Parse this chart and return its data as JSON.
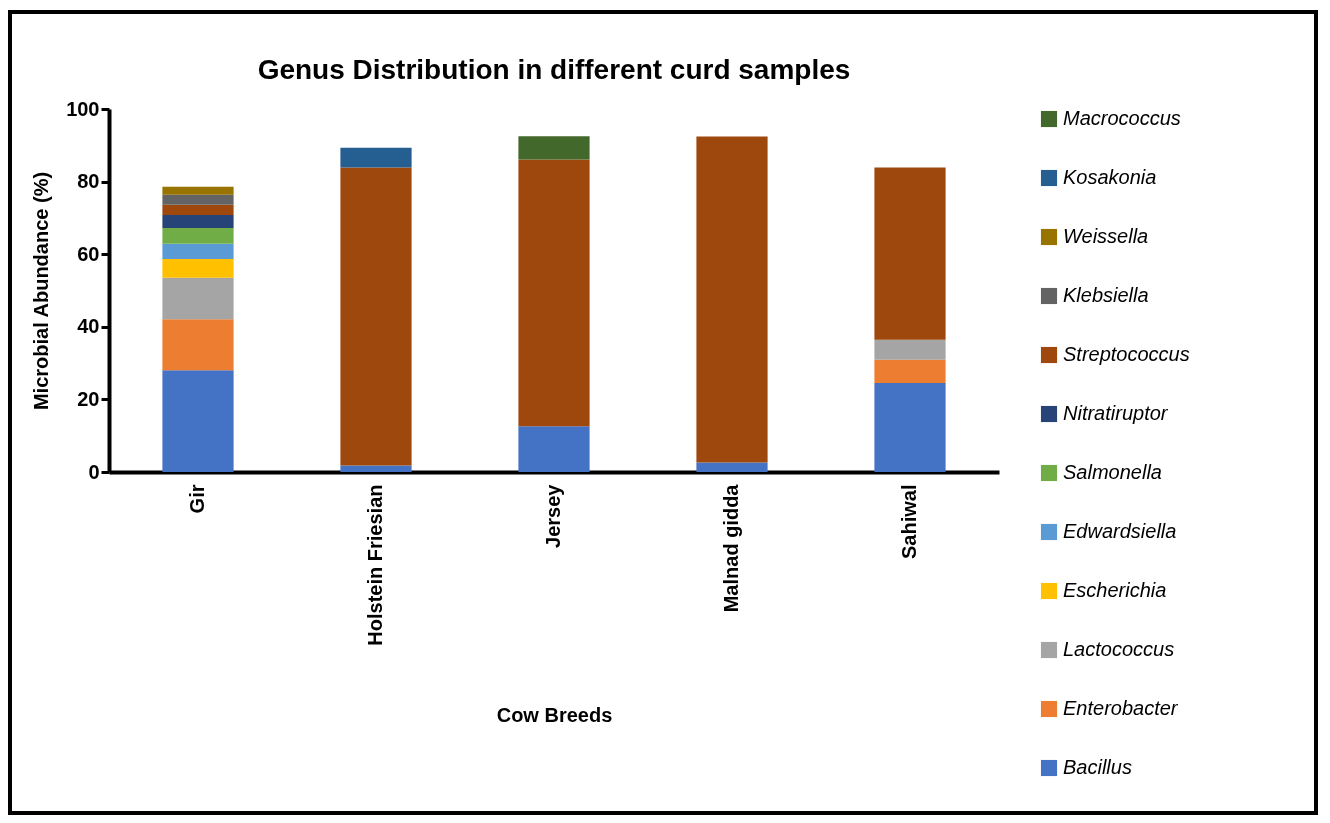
{
  "chart_data": {
    "type": "bar",
    "title": "Genus Distribution in different curd samples",
    "xlabel": "Cow Breeds",
    "ylabel": "Microbial Abundance (%)",
    "categories": [
      "Gir",
      "Holstein Friesian",
      "Jersey",
      "Malnad gidda",
      "Sahiwal"
    ],
    "stacked": true,
    "ylim": [
      0,
      100
    ],
    "yticks": [
      0,
      20,
      40,
      60,
      80,
      100
    ],
    "grid": false,
    "legend": "right",
    "series": [
      {
        "name": "Bacillus",
        "color": "#4472c4",
        "values": [
          28.0,
          1.8,
          12.6,
          2.6,
          24.5
        ]
      },
      {
        "name": "Enterobacter",
        "color": "#ed7d31",
        "values": [
          14.1,
          null,
          null,
          null,
          6.4
        ]
      },
      {
        "name": "Lactococcus",
        "color": "#a5a5a5",
        "values": [
          11.4,
          null,
          null,
          null,
          5.5
        ]
      },
      {
        "name": "Escherichia",
        "color": "#ffc000",
        "values": [
          5.2,
          null,
          null,
          null,
          null
        ]
      },
      {
        "name": "Edwardsiella",
        "color": "#5b9bd5",
        "values": [
          4.2,
          null,
          null,
          null,
          null
        ]
      },
      {
        "name": "Salmonella",
        "color": "#70ad47",
        "values": [
          4.3,
          null,
          null,
          null,
          null
        ]
      },
      {
        "name": "Nitratiruptor",
        "color": "#264478",
        "values": [
          3.6,
          null,
          null,
          null,
          null
        ]
      },
      {
        "name": "Streptococcus",
        "color": "#9e480e",
        "values": [
          2.8,
          82.1,
          73.5,
          89.8,
          47.5
        ]
      },
      {
        "name": "Klebsiella",
        "color": "#636363",
        "values": [
          2.8,
          null,
          null,
          null,
          null
        ]
      },
      {
        "name": "Weissella",
        "color": "#997300",
        "values": [
          2.2,
          null,
          null,
          null,
          null
        ]
      },
      {
        "name": "Kosakonia",
        "color": "#255e91",
        "values": [
          null,
          5.4,
          null,
          null,
          null
        ]
      },
      {
        "name": "Macrococcus",
        "color": "#43682b",
        "values": [
          null,
          null,
          6.4,
          null,
          null
        ]
      }
    ]
  }
}
